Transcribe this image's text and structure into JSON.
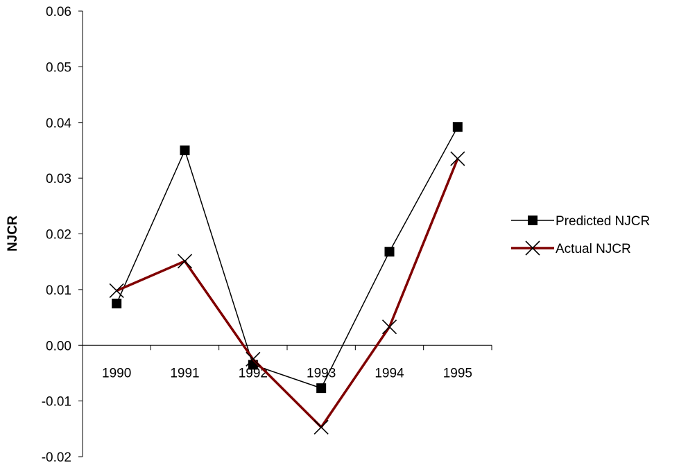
{
  "chart_data": {
    "type": "line",
    "title": "",
    "xlabel": "",
    "ylabel": "NJCR",
    "categories": [
      "1990",
      "1991",
      "1992",
      "1993",
      "1994",
      "1995"
    ],
    "ylim": [
      -0.02,
      0.06
    ],
    "yticks": [
      "0.06",
      "0.05",
      "0.04",
      "0.03",
      "0.02",
      "0.01",
      "0.00",
      "-0.01",
      "-0.02"
    ],
    "grid": false,
    "legend_position": "right",
    "series": [
      {
        "name": "Predicted NJCR",
        "values": [
          0.0075,
          0.035,
          -0.0035,
          -0.0077,
          0.0168,
          0.0392
        ],
        "color": "#000000",
        "marker": "square"
      },
      {
        "name": "Actual NJCR",
        "values": [
          0.0098,
          0.0151,
          -0.0025,
          -0.0147,
          0.0033,
          0.0335
        ],
        "color": "#800000",
        "marker": "x"
      }
    ]
  }
}
